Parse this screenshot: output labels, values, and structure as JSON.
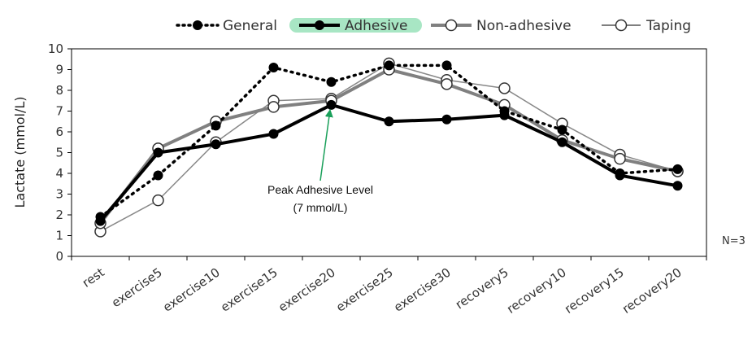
{
  "chart_data": {
    "type": "line",
    "ylabel": "Lactate (mmol/L)",
    "xlabel": "",
    "ylim": [
      0,
      10
    ],
    "yticks": [
      0,
      1,
      2,
      3,
      4,
      5,
      6,
      7,
      8,
      9,
      10
    ],
    "grid": false,
    "legend_position": "top-right",
    "categories": [
      "rest",
      "exercise5",
      "exercise10",
      "exercise15",
      "exercise20",
      "exercise25",
      "exercise30",
      "recovery5",
      "recovery10",
      "recovery15",
      "recovery20"
    ],
    "series": [
      {
        "name": "General",
        "values": [
          1.9,
          3.9,
          6.3,
          9.1,
          8.4,
          9.2,
          9.2,
          7.0,
          6.1,
          4.0,
          4.2
        ],
        "color": "#000000",
        "style": "dotted",
        "marker": "filled-circle"
      },
      {
        "name": "Adhesive",
        "values": [
          1.7,
          5.0,
          5.4,
          5.9,
          7.3,
          6.5,
          6.6,
          6.8,
          5.5,
          3.9,
          3.4
        ],
        "color": "#000000",
        "style": "solid-thick",
        "marker": "filled-circle"
      },
      {
        "name": "Non-adhesive",
        "values": [
          1.6,
          5.2,
          6.5,
          7.2,
          7.5,
          9.0,
          8.3,
          7.3,
          5.6,
          4.7,
          4.1
        ],
        "color": "#808080",
        "style": "solid-thick",
        "marker": "open-circle"
      },
      {
        "name": "Taping",
        "values": [
          1.2,
          2.7,
          5.5,
          7.5,
          7.6,
          9.3,
          8.5,
          8.1,
          6.4,
          4.9,
          4.1
        ],
        "color": "#888888",
        "style": "solid-thin",
        "marker": "open-circle"
      }
    ],
    "annotations": [
      {
        "text_line1": "Peak Adhesive Level",
        "text_line2": "(7 mmol/L)",
        "points_to_category": "exercise20",
        "points_to_value": 7.3,
        "arrow_color": "#1aa05a"
      }
    ],
    "note": "N=3",
    "legend_highlight_color": "#a8e6c4"
  }
}
